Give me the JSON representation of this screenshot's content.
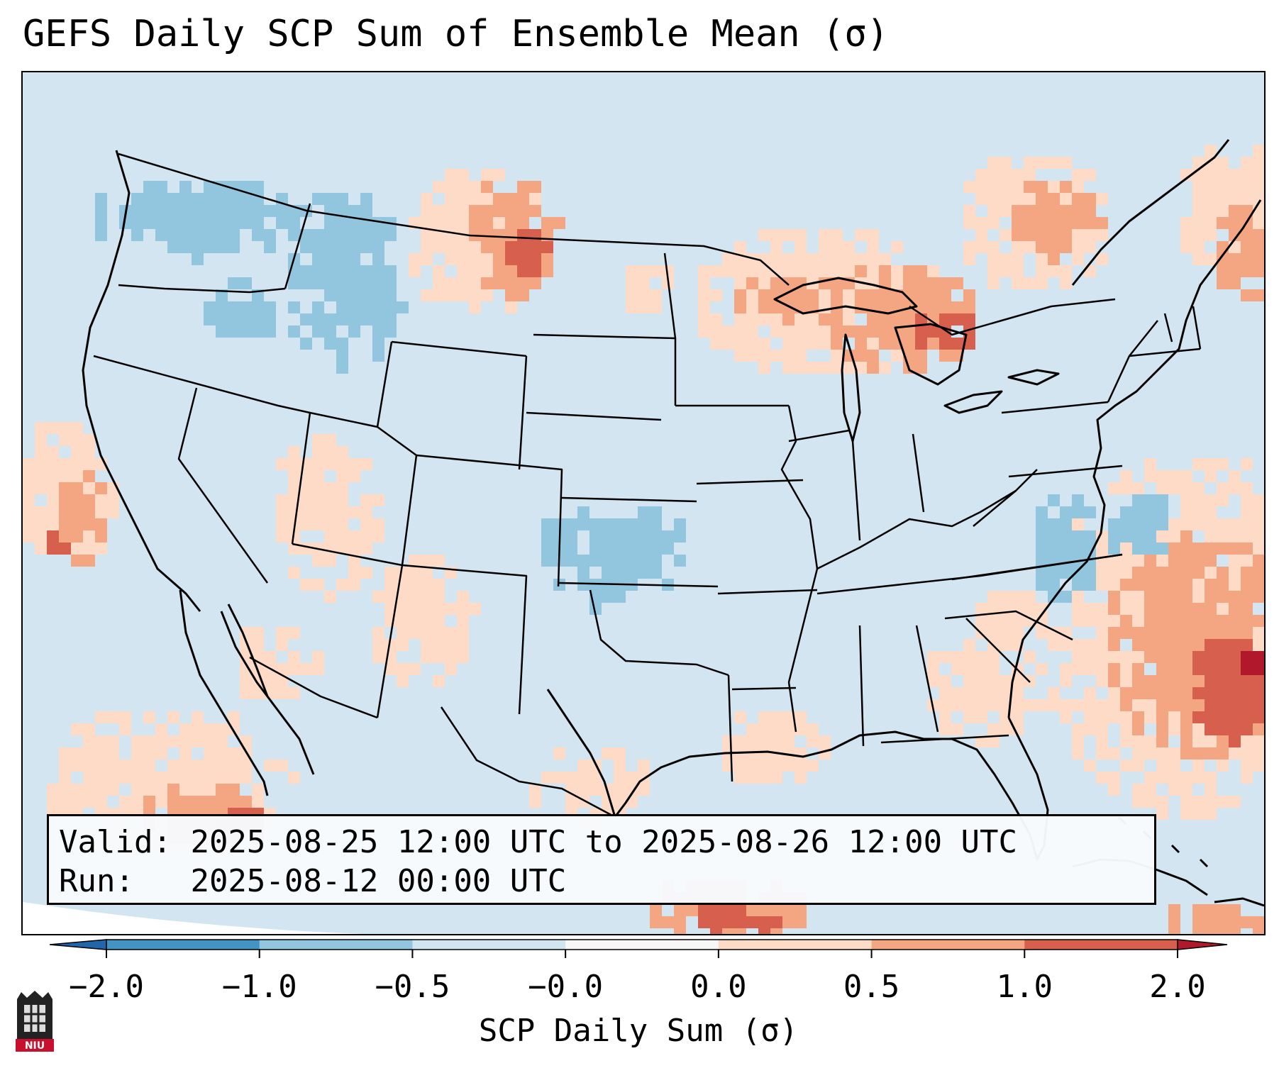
{
  "title": "GEFS Daily SCP Sum of Ensemble Mean (σ)",
  "valid_box": {
    "valid_label": "Valid:",
    "valid_value": "2025-08-25 12:00 UTC to 2025-08-26 12:00 UTC",
    "run_label": "Run:  ",
    "run_value": "2025-08-12 00:00 UTC"
  },
  "colorbar": {
    "label": "SCP Daily Sum (σ)",
    "ticks": [
      "−2.0",
      "−1.0",
      "−0.5",
      "−0.0",
      "0.0",
      "0.5",
      "1.0",
      "2.0"
    ],
    "colors": [
      "#4393c3",
      "#92c5de",
      "#d1e5f0",
      "#f7f7f7",
      "#fddbc7",
      "#f4a582",
      "#d6604d"
    ],
    "under_color": "#2166ac",
    "over_color": "#b2182b"
  },
  "logo": {
    "text": "NIU",
    "color": "#c8102e"
  }
}
